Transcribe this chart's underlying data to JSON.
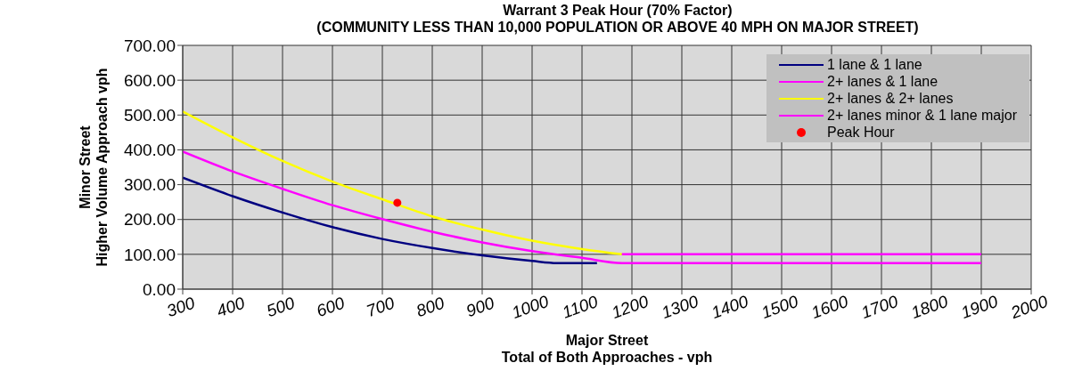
{
  "chart_data": {
    "type": "line",
    "title": "Warrant 3 Peak Hour (70% Factor)",
    "subtitle": "(COMMUNITY LESS THAN 10,000 POPULATION OR ABOVE 40 MPH ON MAJOR STREET)",
    "xlabel": "Major Street\nTotal of Both Approaches - vph",
    "ylabel": "Minor Street\nHigher Volume Approach vph",
    "xlim": [
      300,
      2000
    ],
    "xticks": [
      300,
      400,
      500,
      600,
      700,
      800,
      900,
      1000,
      1100,
      1200,
      1300,
      1400,
      1500,
      1600,
      1700,
      1800,
      1900,
      2000
    ],
    "ylim": [
      0,
      700
    ],
    "yticks": [
      {
        "value": 0,
        "label": "0.00"
      },
      {
        "value": 100,
        "label": "100.00"
      },
      {
        "value": 200,
        "label": "200.00"
      },
      {
        "value": 300,
        "label": "300.00"
      },
      {
        "value": 400,
        "label": "400.00"
      },
      {
        "value": 500,
        "label": "500.00"
      },
      {
        "value": 600,
        "label": "600.00"
      },
      {
        "value": 700,
        "label": "700.00"
      }
    ],
    "grid": true,
    "legend": "top right",
    "marker": "none",
    "line_style": "solid",
    "series": [
      {
        "name": "1 lane & 1 lane",
        "color": "#000080",
        "x": [
          300,
          400,
          500,
          600,
          700,
          800,
          900,
          1000,
          1050,
          1130
        ],
        "values": [
          320,
          267,
          220,
          178,
          144,
          118,
          97,
          81,
          75,
          75
        ]
      },
      {
        "name": "2+ lanes & 1 lane",
        "color": "#ff00ff",
        "x": [
          300,
          400,
          500,
          600,
          700,
          800,
          900,
          1000,
          1100,
          1180,
          1900
        ],
        "values": [
          395,
          338,
          288,
          241,
          201,
          165,
          134,
          109,
          90,
          75,
          75
        ]
      },
      {
        "name": "2+ lanes & 2+ lanes",
        "color": "#ffff00",
        "x": [
          300,
          400,
          500,
          600,
          700,
          800,
          900,
          1000,
          1100,
          1180
        ],
        "values": [
          510,
          436,
          368,
          309,
          258,
          209,
          171,
          139,
          115,
          100
        ]
      },
      {
        "name": "2+ lanes minor & 1 lane major",
        "color": "#ff00ff",
        "x": [
          1180,
          1900
        ],
        "values": [
          100,
          100
        ]
      },
      {
        "name": "Peak Hour",
        "type": "scatter",
        "marker": "circle",
        "color": "#ff0000",
        "x": [
          730
        ],
        "values": [
          248
        ]
      }
    ]
  }
}
